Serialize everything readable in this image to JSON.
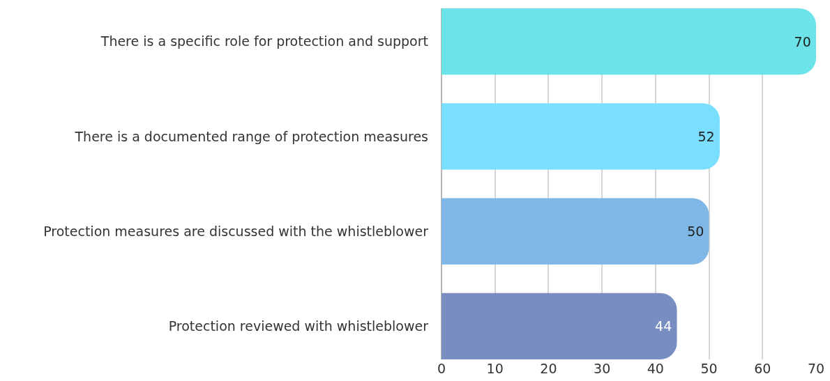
{
  "chart_data": {
    "type": "bar",
    "orientation": "horizontal",
    "categories": [
      "There is a specific role for protection and support",
      "There is a documented range of protection measures",
      "Protection measures are discussed with the whistleblower",
      "Protection reviewed with whistleblower"
    ],
    "values": [
      70,
      52,
      50,
      44
    ],
    "colors": [
      "#6be3e8",
      "#7adefe",
      "#7fb8e6",
      "#798ec0"
    ],
    "xlim": [
      0,
      70
    ],
    "xticks": [
      0,
      10,
      20,
      30,
      40,
      50,
      60,
      70
    ],
    "grid": "x",
    "data_labels": true
  }
}
